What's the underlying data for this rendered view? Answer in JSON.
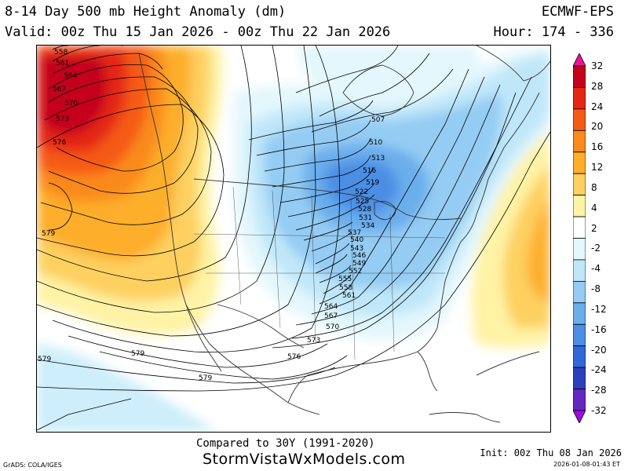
{
  "header": {
    "title": "8-14 Day 500 mb Height Anomaly (dm)",
    "valid": "Valid: 00z Thu 15 Jan 2026 - 00z Thu 22 Jan 2026",
    "model": "ECMWF-EPS",
    "hour": "Hour: 174 - 336"
  },
  "footer": {
    "compared": "Compared to 30Y (1991-2020)",
    "site": "StormVistaWxModels.com",
    "grads": "GrADS: COLA/IGES",
    "init": "Init: 00z Thu 08 Jan 2026",
    "generated": "2026-01-08-01:43 ET"
  },
  "colorbar": {
    "labels": [
      "32",
      "28",
      "24",
      "20",
      "16",
      "12",
      "8",
      "4",
      "2",
      "-2",
      "-4",
      "-8",
      "-12",
      "-16",
      "-20",
      "-24",
      "-28",
      "-32"
    ],
    "colors": [
      "#f0119a",
      "#c4001a",
      "#e42614",
      "#f55a16",
      "#fa8a1e",
      "#fdae2a",
      "#fdd061",
      "#fff3a6",
      "#ffffff",
      "#e3f7fd",
      "#bfe7f9",
      "#94ccf3",
      "#6aaeec",
      "#4b8ee4",
      "#3068d8",
      "#2c40bd",
      "#6527c2",
      "#9d0bdb"
    ]
  },
  "contours": {
    "labels": [
      "558",
      "561",
      "564",
      "567",
      "570",
      "573",
      "576",
      "579",
      "507",
      "510",
      "513",
      "516",
      "519",
      "522",
      "525",
      "528",
      "531",
      "534",
      "537",
      "540",
      "543",
      "546",
      "549",
      "552",
      "555",
      "558",
      "561",
      "564",
      "567",
      "570",
      "573",
      "576",
      "579",
      "579",
      "579"
    ]
  }
}
